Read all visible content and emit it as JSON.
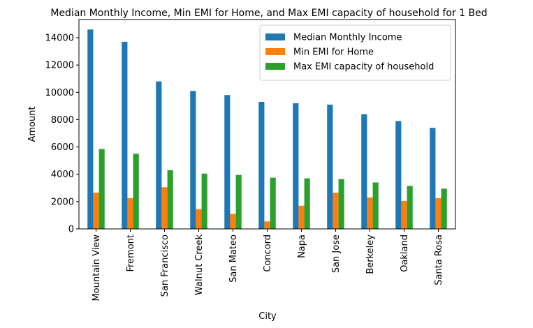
{
  "chart_data": {
    "type": "bar",
    "title": "Median Monthly Income, Min EMI for Home, and Max EMI capacity of household for 1 Bed",
    "xlabel": "City",
    "ylabel": "Amount",
    "categories": [
      "Mountain View",
      "Fremont",
      "San Francisco",
      "Walnut Creek",
      "San Mateo",
      "Concord",
      "Napa",
      "San Jose",
      "Berkeley",
      "Oakland",
      "Santa Rosa"
    ],
    "series": [
      {
        "name": "Median Monthly Income",
        "color": "#1f77b4",
        "values": [
          14600,
          13700,
          10800,
          10100,
          9800,
          9300,
          9200,
          9100,
          8400,
          7900,
          7400
        ]
      },
      {
        "name": "Min EMI for Home",
        "color": "#ff7f0e",
        "values": [
          2650,
          2250,
          3050,
          1450,
          1100,
          550,
          1700,
          2650,
          2300,
          2050,
          2250
        ]
      },
      {
        "name": "Max EMI capacity of household",
        "color": "#2ca02c",
        "values": [
          5850,
          5500,
          4300,
          4050,
          3950,
          3750,
          3700,
          3650,
          3400,
          3150,
          2950
        ]
      }
    ],
    "ylim": [
      0,
      15330
    ],
    "yticks": [
      0,
      2000,
      4000,
      6000,
      8000,
      10000,
      12000,
      14000
    ],
    "legend": "top-right",
    "grid": false
  }
}
